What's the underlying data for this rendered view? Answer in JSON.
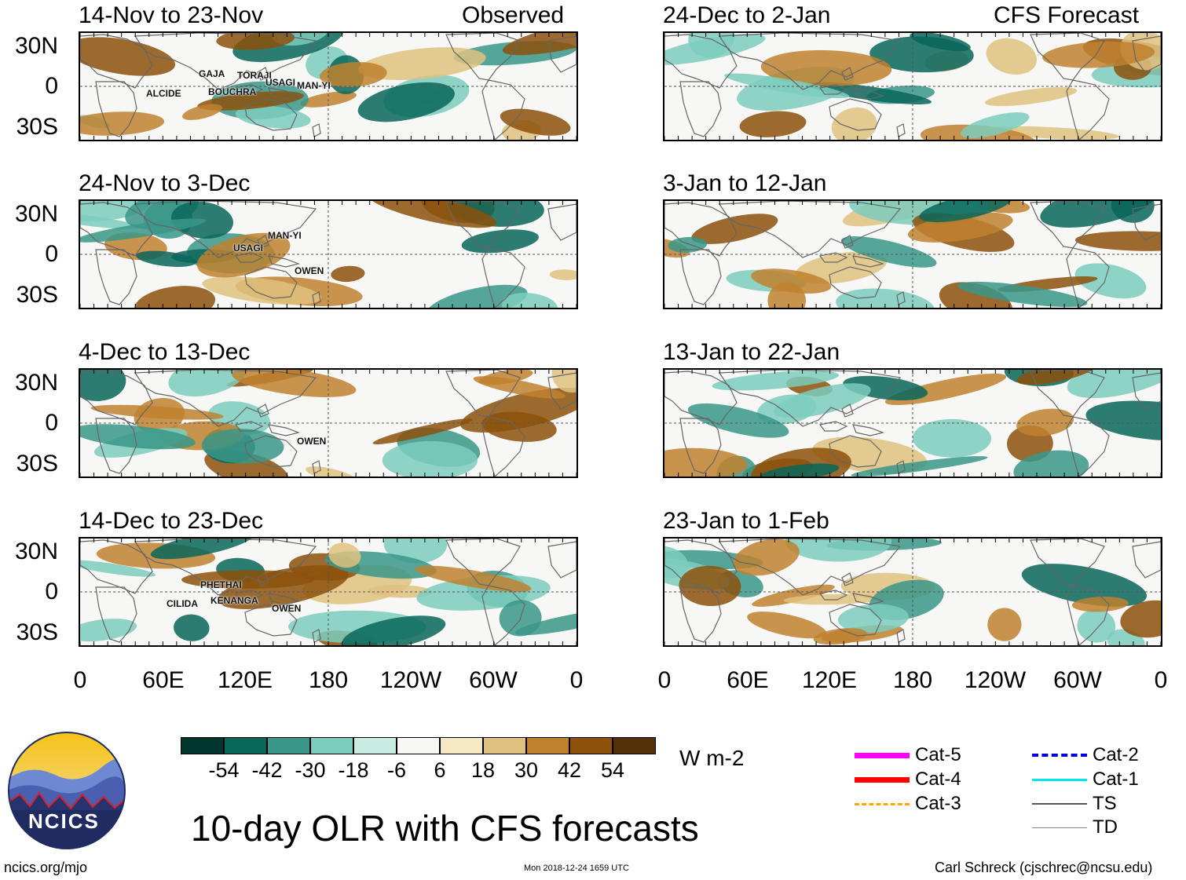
{
  "title": "10-day OLR with CFS forecasts",
  "header": {
    "observed_label": "Observed",
    "forecast_label": "CFS Forecast"
  },
  "lat_labels": [
    "30N",
    "0",
    "30S"
  ],
  "lon_labels": [
    "0",
    "60E",
    "120E",
    "180",
    "120W",
    "60W",
    "0"
  ],
  "panels_left": [
    {
      "title": "14-Nov to 23-Nov",
      "storms": [
        "GAJA",
        "TORAJI",
        "USAGI",
        "MAN-YI",
        "ALCIDE",
        "BOUCHRA"
      ]
    },
    {
      "title": "24-Nov to 3-Dec",
      "storms": [
        "MAN-YI",
        "USAGI",
        "OWEN"
      ]
    },
    {
      "title": "4-Dec to 13-Dec",
      "storms": [
        "OWEN"
      ]
    },
    {
      "title": "14-Dec to 23-Dec",
      "storms": [
        "PHETHAI",
        "CILIDA",
        "KENANGA",
        "OWEN"
      ]
    }
  ],
  "panels_right": [
    {
      "title": "24-Dec to 2-Jan"
    },
    {
      "title": "3-Jan to 12-Jan"
    },
    {
      "title": "13-Jan to 22-Jan"
    },
    {
      "title": "23-Jan to 1-Feb"
    }
  ],
  "colorbar": {
    "colors": [
      "#00362c",
      "#08665a",
      "#3a9688",
      "#7ccdbd",
      "#c8ece2",
      "#f6f6f4",
      "#f5e8c2",
      "#dfc27f",
      "#bf812e",
      "#8c510b",
      "#543006"
    ],
    "labels": [
      "-54",
      "-42",
      "-30",
      "-18",
      "-6",
      "6",
      "18",
      "30",
      "42",
      "54"
    ],
    "units": "W m-2"
  },
  "legend": [
    {
      "label": "Cat-5",
      "color": "#ff00ff"
    },
    {
      "label": "Cat-4",
      "color": "#ff0000"
    },
    {
      "label": "Cat-3",
      "color": "#ffa500"
    },
    {
      "label": "Cat-2",
      "color": "#0000dd"
    },
    {
      "label": "Cat-1",
      "color": "#00e5ee"
    },
    {
      "label": "TS",
      "color": "#555555"
    },
    {
      "label": "TD",
      "color": "#888888"
    }
  ],
  "logo_text": "NCICS",
  "footer": {
    "website": "ncics.org/mjo",
    "timestamp": "Mon 2018-12-24 1659 UTC",
    "author": "Carl Schreck (cjschrec@ncsu.edu)"
  }
}
